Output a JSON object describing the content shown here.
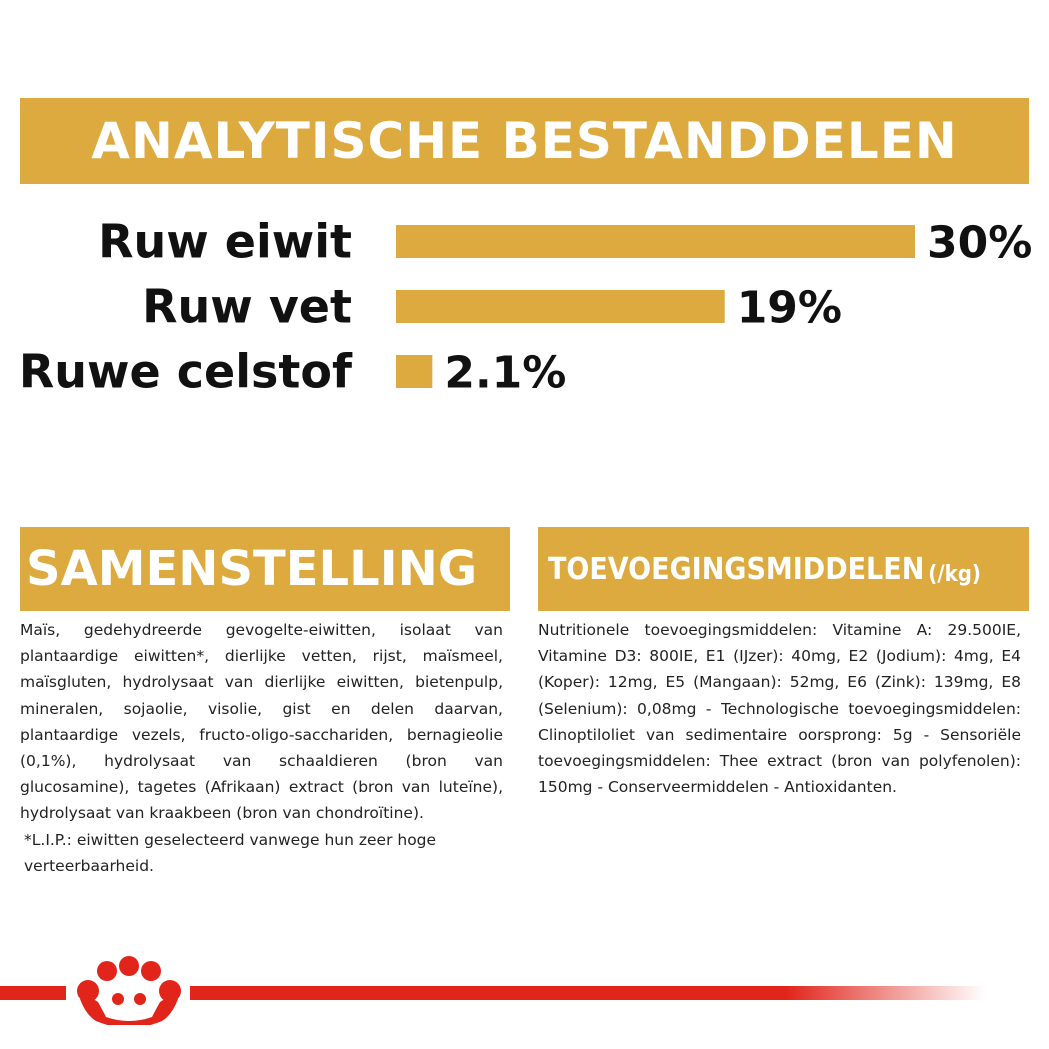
{
  "title": "ANALYTISCHE BESTANDDELEN",
  "chart_data": {
    "type": "bar",
    "orientation": "horizontal",
    "categories": [
      "Ruw eiwit",
      "Ruw vet",
      "Ruwe celstof"
    ],
    "values": [
      30,
      19,
      2.1
    ],
    "value_labels": [
      "30%",
      "19%",
      "2.1%"
    ],
    "xlim": [
      0,
      30
    ],
    "grid": false,
    "bar_color": "#dcaa3f"
  },
  "composition": {
    "heading": "SAMENSTELLING",
    "text": "Maïs, gedehydreerde gevogelte-eiwitten, isolaat van plantaardige eiwitten*, dierlijke vetten, rijst, maïsmeel, maïsgluten, hydrolysaat van dierlijke eiwitten, bietenpulp, mineralen, sojaolie, visolie, gist en delen daarvan, plantaardige vezels, fructo-oligo-sacchariden, bernagieolie (0,1%), hydrolysaat van schaaldieren (bron van glucosamine), tagetes (Afrikaan) extract (bron van luteïne), hydrolysaat van kraakbeen (bron van chondroïtine).",
    "note": "*L.I.P.: eiwitten geselecteerd vanwege hun zeer hoge verteerbaarheid."
  },
  "additives": {
    "heading": "TOEVOEGINGSMIDDELEN",
    "unit": "(/kg)",
    "text": "Nutritionele toevoegingsmiddelen: Vitamine A: 29.500IE, Vitamine D3: 800IE, E1 (IJzer): 40mg, E2 (Jodium): 4mg, E4 (Koper): 12mg, E5 (Mangaan): 52mg, E6 (Zink): 139mg, E8 (Selenium): 0,08mg - Technologische toevoegingsmiddelen: Clinoptiloliet van sedimentaire oorsprong: 5g - Sensoriële toevoegingsmiddelen: Thee extract (bron van polyfenolen): 150mg - Conserveermiddelen - Antioxidanten."
  },
  "colors": {
    "accent": "#dcaa3f",
    "brand_red": "#e1251b"
  },
  "footer": {
    "logo_icon": "crown-logo-icon"
  }
}
